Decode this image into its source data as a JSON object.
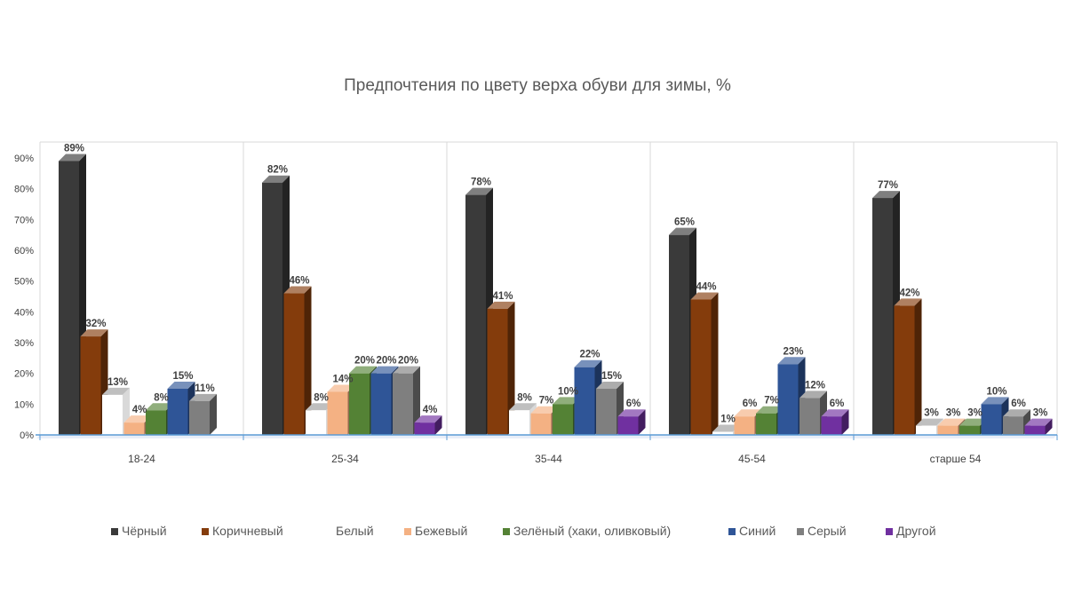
{
  "chart_data": {
    "type": "bar",
    "title": "Предпочтения по цвету верха обуви для зимы, %",
    "xlabel": "",
    "ylabel": "",
    "ylim": [
      0,
      90
    ],
    "yticks": [
      "0%",
      "10%",
      "20%",
      "30%",
      "40%",
      "50%",
      "60%",
      "70%",
      "80%",
      "90%"
    ],
    "categories": [
      "18-24",
      "25-34",
      "35-44",
      "45-54",
      "старше 54"
    ],
    "legend_position": "bottom",
    "grid": "vertical category separators",
    "series": [
      {
        "name": "Чёрный",
        "color": "#3a3a3a",
        "values": [
          89,
          82,
          78,
          65,
          77
        ],
        "labels": [
          "89%",
          "82%",
          "78%",
          "65%",
          "77%"
        ]
      },
      {
        "name": "Коричневый",
        "color": "#843c0c",
        "values": [
          32,
          46,
          41,
          44,
          42
        ],
        "labels": [
          "32%",
          "46%",
          "41%",
          "44%",
          "42%"
        ]
      },
      {
        "name": "Белый",
        "color": "#ffffff",
        "values": [
          13,
          8,
          8,
          1,
          3
        ],
        "labels": [
          "13%",
          "8%",
          "8%",
          "1%",
          "3%"
        ]
      },
      {
        "name": "Бежевый",
        "color": "#f4b183",
        "values": [
          4,
          14,
          7,
          6,
          3
        ],
        "labels": [
          "4%",
          "14%",
          "7%",
          "6%",
          "3%"
        ]
      },
      {
        "name": "Зелёный (хаки, оливковый)",
        "color": "#548235",
        "values": [
          8,
          20,
          10,
          7,
          3
        ],
        "labels": [
          "8%",
          "20%",
          "10%",
          "7%",
          "3%"
        ]
      },
      {
        "name": "Синий",
        "color": "#2f5597",
        "values": [
          15,
          20,
          22,
          23,
          10
        ],
        "labels": [
          "15%",
          "20%",
          "22%",
          "23%",
          "10%"
        ]
      },
      {
        "name": "Серый",
        "color": "#7f7f7f",
        "values": [
          11,
          20,
          15,
          12,
          6
        ],
        "labels": [
          "11%",
          "20%",
          "15%",
          "12%",
          "6%"
        ]
      },
      {
        "name": "Другой",
        "color": "#7030a0",
        "values": [
          0,
          4,
          6,
          6,
          3
        ],
        "labels": [
          "",
          "4%",
          "6%",
          "6%",
          "3%"
        ]
      }
    ]
  }
}
